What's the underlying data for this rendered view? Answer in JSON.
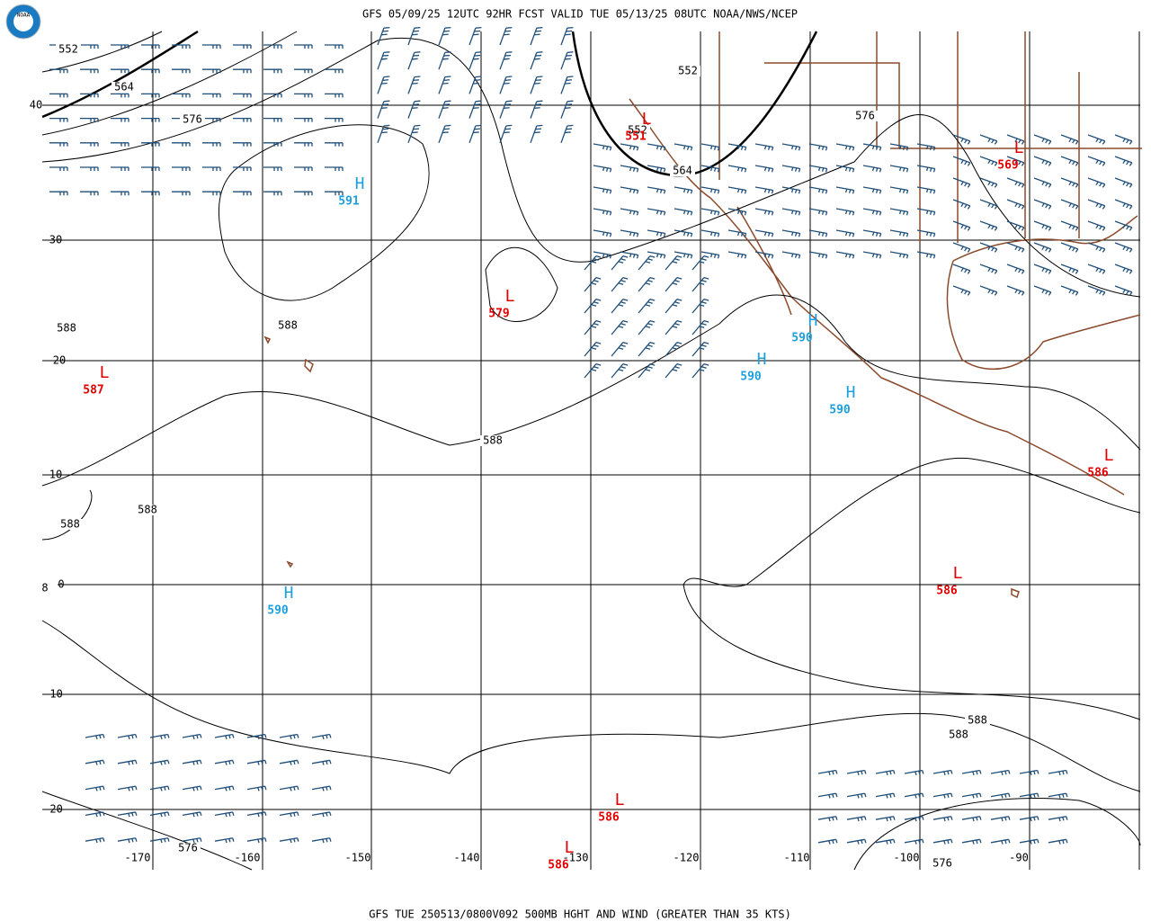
{
  "header": {
    "title": "GFS 05/09/25 12UTC 92HR FCST VALID TUE 05/13/25 08UTC NOAA/NWS/NCEP",
    "logo": "NOAA"
  },
  "footer": {
    "caption": "GFS TUE 250513/0800V092 500MB HGHT AND WIND (GREATER THAN 35 KTS)"
  },
  "map": {
    "latitude_labels": [
      "40",
      "30",
      "20",
      "10",
      "0",
      "-10",
      "-20"
    ],
    "longitude_labels": [
      "-170",
      "-160",
      "-150",
      "-140",
      "-130",
      "-120",
      "-110",
      "-100",
      "-90"
    ],
    "contour_labels": [
      "552",
      "564",
      "576",
      "552",
      "552",
      "564",
      "576",
      "588",
      "588",
      "588",
      "588",
      "588",
      "588",
      "588",
      "576",
      "576",
      "8"
    ],
    "centers": [
      {
        "label": "H",
        "value": "591"
      },
      {
        "label": "L",
        "value": "579"
      },
      {
        "label": "L",
        "value": "551"
      },
      {
        "label": "L",
        "value": "569"
      },
      {
        "label": "H",
        "value": "590"
      },
      {
        "label": "H",
        "value": "590"
      },
      {
        "label": "H",
        "value": "590"
      },
      {
        "label": "L",
        "value": "587"
      },
      {
        "label": "L",
        "value": "586"
      },
      {
        "label": "L",
        "value": "586"
      },
      {
        "label": "H",
        "value": "590"
      },
      {
        "label": "L",
        "value": "586"
      },
      {
        "label": "L",
        "value": "586"
      }
    ]
  }
}
